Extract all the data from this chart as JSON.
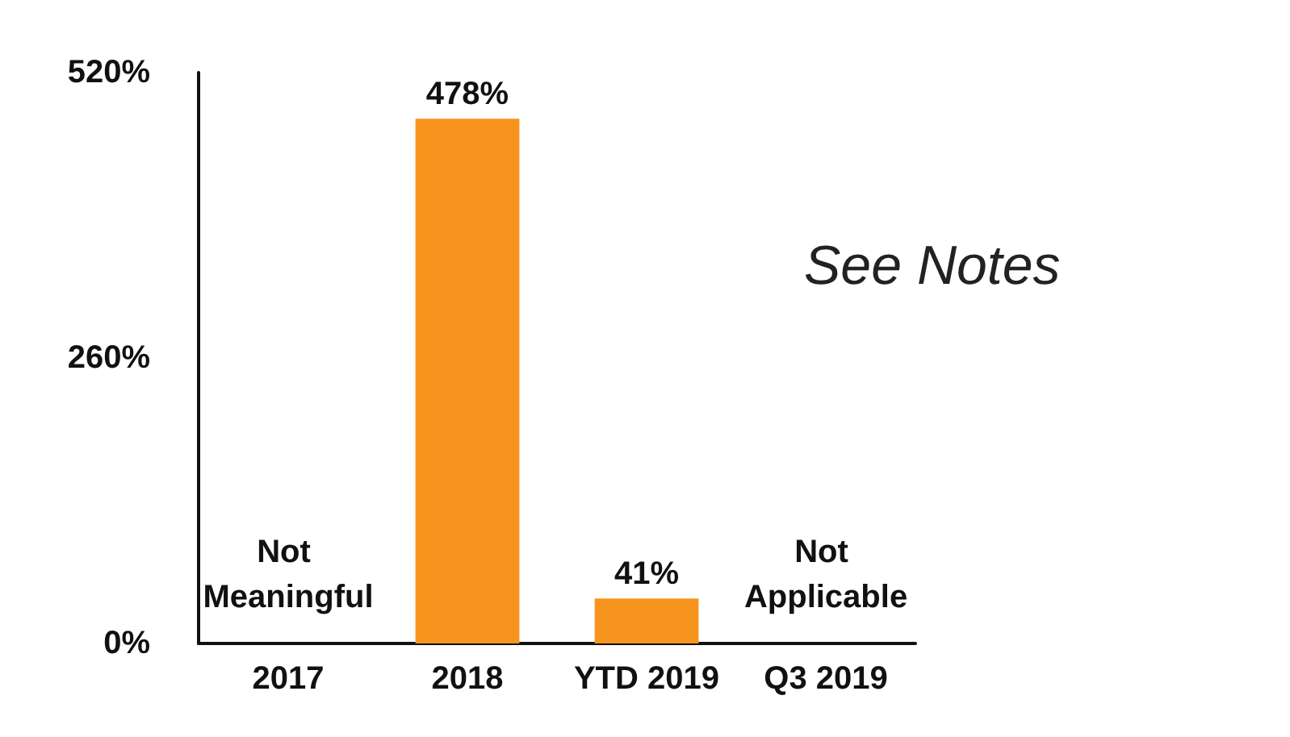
{
  "chart_data": {
    "type": "bar",
    "categories": [
      "2017",
      "2018",
      "YTD 2019",
      "Q3 2019"
    ],
    "values": [
      null,
      478,
      41,
      null
    ],
    "color": "#f7941d",
    "ylim": [
      0,
      520
    ],
    "yticks": [
      {
        "value": 0,
        "label": "0%"
      },
      {
        "value": 260,
        "label": "260%"
      },
      {
        "value": 520,
        "label": "520%"
      }
    ],
    "value_labels": [
      null,
      "478%",
      "41%",
      null
    ],
    "annotations": [
      "Not Meaningful",
      "Not Applicable",
      "See Notes"
    ],
    "grid": false
  }
}
